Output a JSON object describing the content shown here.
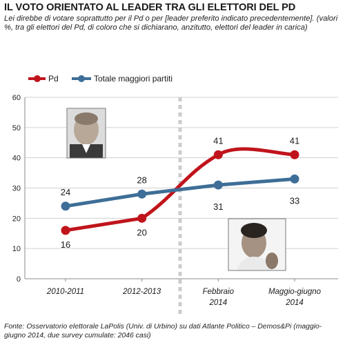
{
  "title": "IL VOTO ORIENTATO AL LEADER TRA GLI ELETTORI DEL PD",
  "subtitle": "Lei direbbe di votare soprattutto per il Pd o per [leader preferito indicato precedentemente]. (valori %, tra gli elettori del Pd, di coloro che si dichiarano, anzitutto, elettori del leader in carica)",
  "source": "Fonte: Osservatorio elettorale LaPolis (Univ. di Urbino) su dati Atlante Politico – Demos&Pi (maggio-giugno 2014, due survey cumulate: 2046 casi)",
  "colors": {
    "pd": "#c0141c",
    "totale": "#3e6e97",
    "grid": "#d0d0d0",
    "divider": "#cccccc"
  },
  "chart_data": {
    "type": "line",
    "categories": [
      [
        "2010-2011"
      ],
      [
        "2012-2013"
      ],
      [
        "Febbraio",
        "2014"
      ],
      [
        "Maggio-giugno",
        "2014"
      ]
    ],
    "series": [
      {
        "name": "Pd",
        "values": [
          16,
          20,
          41,
          41
        ],
        "labels": [
          "16",
          "20",
          "41",
          "41"
        ],
        "color": "#c0141c"
      },
      {
        "name": "Totale maggiori partiti",
        "values": [
          24,
          28,
          31,
          33
        ],
        "labels": [
          "24",
          "28",
          "31",
          "33"
        ],
        "color": "#3e6e97"
      }
    ],
    "ylim": [
      0,
      60
    ],
    "yticks": [
      "0",
      "10",
      "20",
      "30",
      "40",
      "50",
      "60"
    ],
    "grid": true,
    "legend": "top-left",
    "divider": "dashed vertical line between 2012-2013 and Febbraio 2014"
  }
}
